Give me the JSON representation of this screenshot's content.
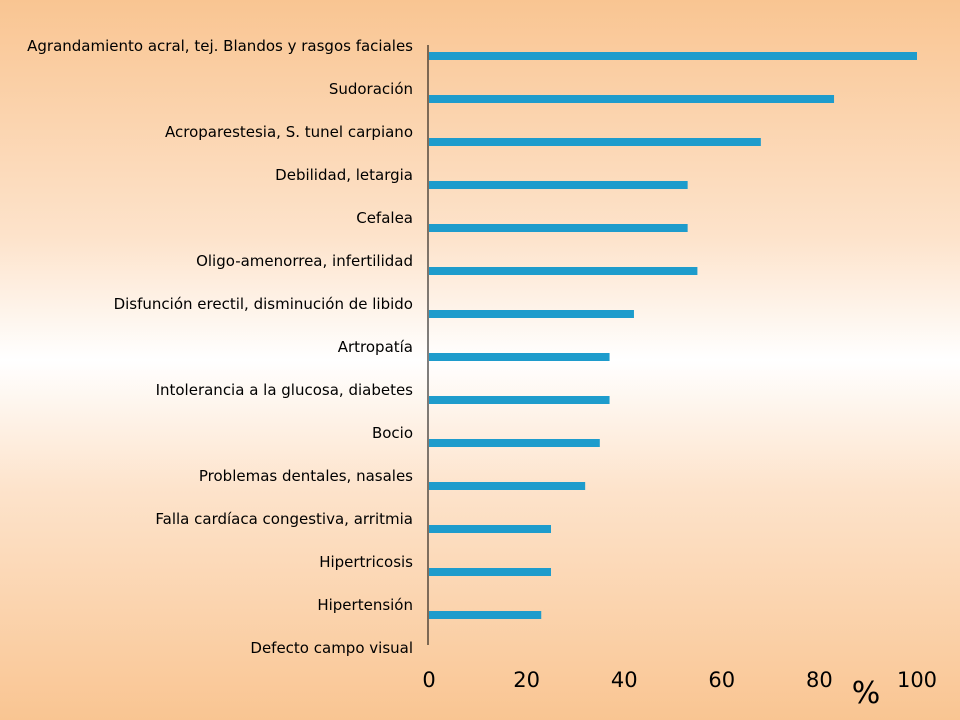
{
  "chart_data": {
    "type": "bar",
    "orientation": "horizontal",
    "categories": [
      "Agrandamiento acral, tej. Blandos y rasgos faciales",
      "Sudoración",
      "Acroparestesia, S. tunel carpiano",
      "Debilidad, letargia",
      "Cefalea",
      "Oligo-amenorrea, infertilidad",
      "Disfunción erectil, disminución de libido",
      "Artropatía",
      "Intolerancia a la glucosa, diabetes",
      "Bocio",
      "Problemas dentales, nasales",
      "Falla cardíaca congestiva, arritmia",
      "Hipertricosis",
      "Hipertensión",
      "Defecto campo visual"
    ],
    "values": [
      100,
      83,
      68,
      53,
      53,
      55,
      42,
      37,
      37,
      35,
      32,
      25,
      25,
      23,
      null
    ],
    "xlim": [
      0,
      100
    ],
    "xticks": [
      0,
      20,
      40,
      60,
      80,
      100
    ],
    "xlabel": "%",
    "ylabel": "",
    "title": "",
    "grid": false,
    "legend": "none",
    "bar_color": "#1e9ccc",
    "axis_color": "#000000"
  }
}
